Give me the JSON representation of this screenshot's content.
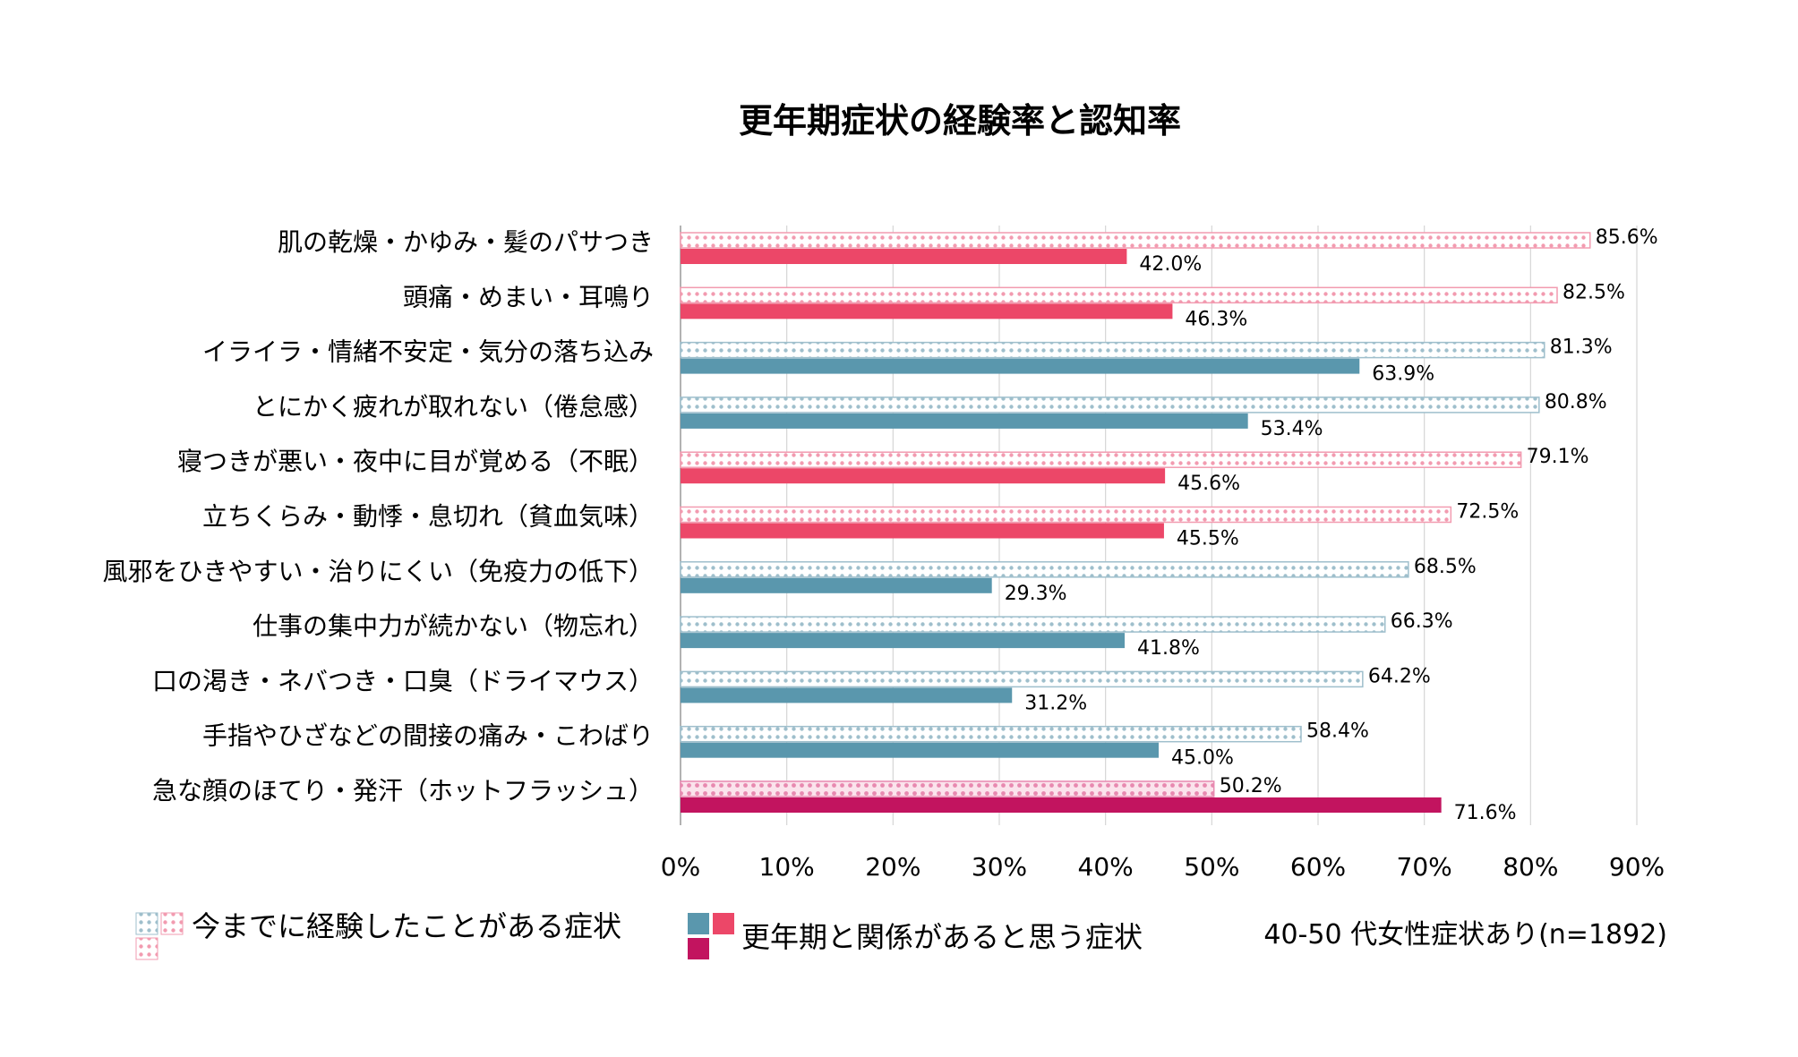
{
  "chart_data": {
    "type": "bar",
    "orientation": "horizontal",
    "title": "更年期症状の経験率と認知率",
    "xlabel": "",
    "ylabel": "",
    "xlim": [
      0,
      90
    ],
    "ticks": [
      "0%",
      "10%",
      "20%",
      "30%",
      "40%",
      "50%",
      "60%",
      "70%",
      "80%",
      "90%"
    ],
    "tick_values": [
      0,
      10,
      20,
      30,
      40,
      50,
      60,
      70,
      80,
      90
    ],
    "grid": "vertical",
    "legend_position": "bottom",
    "categories": [
      "肌の乾燥・かゆみ・髪のパサつき",
      "頭痛・めまい・耳鳴り",
      "イライラ・情緒不安定・気分の落ち込み",
      "とにかく疲れが取れない（倦怠感）",
      "寝つきが悪い・夜中に目が覚める（不眠）",
      "立ちくらみ・動悸・息切れ（貧血気味）",
      "風邪をひきやすい・治りにくい（免疫力の低下）",
      "仕事の集中力が続かない（物忘れ）",
      "口の渇き・ネバつき・口臭（ドライマウス）",
      "手指やひざなどの間接の痛み・こわばり",
      "急な顔のほてり・発汗（ホットフラッシュ）"
    ],
    "colors": [
      "pink",
      "pink",
      "blue",
      "blue",
      "pink",
      "pink",
      "blue",
      "blue",
      "blue",
      "blue",
      "magenta"
    ],
    "series": [
      {
        "name": "今までに経験したことがある症状",
        "values": [
          85.6,
          82.5,
          81.3,
          80.8,
          79.1,
          72.5,
          68.5,
          66.3,
          64.2,
          58.4,
          50.2
        ],
        "labels": [
          "85.6%",
          "82.5%",
          "81.3%",
          "80.8%",
          "79.1%",
          "72.5%",
          "68.5%",
          "66.3%",
          "64.2%",
          "58.4%",
          "50.2%"
        ]
      },
      {
        "name": "更年期と関係があると思う症状",
        "values": [
          42.0,
          46.3,
          63.9,
          53.4,
          45.6,
          45.5,
          29.3,
          41.8,
          31.2,
          45.0,
          71.6
        ],
        "labels": [
          "42.0%",
          "46.3%",
          "63.9%",
          "53.4%",
          "45.6%",
          "45.5%",
          "29.3%",
          "41.8%",
          "31.2%",
          "45.0%",
          "71.6%"
        ]
      }
    ],
    "note": "40-50 代女性症状あり(n=1892)"
  },
  "palette": {
    "pink": "#ec4768",
    "pink_dot": "#f29bb0",
    "blue": "#5a97ad",
    "blue_dot": "#9fbfcc",
    "magenta": "#c2145f",
    "magenta_dot": "#e889b0",
    "grid": "#d6d6d6",
    "axis": "#999999"
  }
}
